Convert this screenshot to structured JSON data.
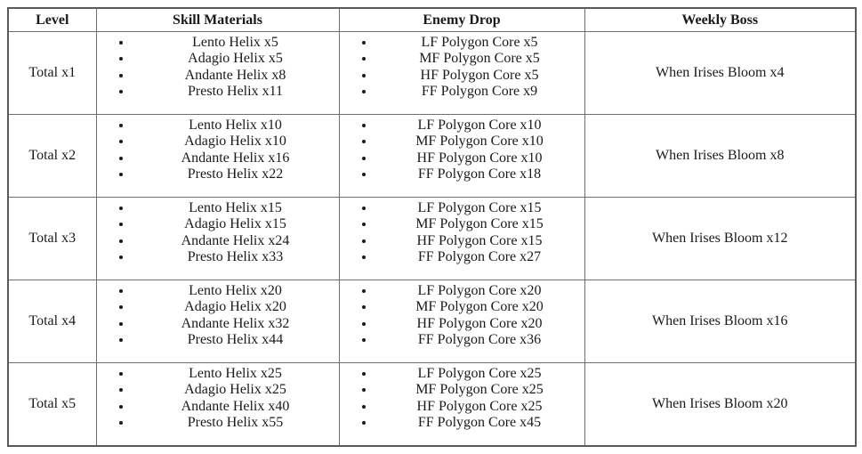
{
  "colors": {
    "background": "#ffffff",
    "border": "#6e6e6e",
    "text": "#1a1a1a"
  },
  "table": {
    "headers": [
      "Level",
      "Skill Materials",
      "Enemy Drop",
      "Weekly Boss"
    ],
    "rows": [
      {
        "level": "Total x1",
        "skill_materials": [
          "Lento Helix x5",
          "Adagio Helix x5",
          "Andante Helix x8",
          "Presto Helix x11"
        ],
        "enemy_drop": [
          "LF Polygon Core x5",
          "MF Polygon Core x5",
          "HF Polygon Core x5",
          "FF Polygon Core x9"
        ],
        "weekly_boss": "When Irises Bloom x4"
      },
      {
        "level": "Total x2",
        "skill_materials": [
          "Lento Helix x10",
          "Adagio Helix x10",
          "Andante Helix x16",
          "Presto Helix x22"
        ],
        "enemy_drop": [
          "LF Polygon Core x10",
          "MF Polygon Core x10",
          "HF Polygon Core x10",
          "FF Polygon Core x18"
        ],
        "weekly_boss": "When Irises Bloom x8"
      },
      {
        "level": "Total x3",
        "skill_materials": [
          "Lento Helix x15",
          "Adagio Helix x15",
          "Andante Helix x24",
          "Presto Helix x33"
        ],
        "enemy_drop": [
          "LF Polygon Core x15",
          "MF Polygon Core x15",
          "HF Polygon Core x15",
          "FF Polygon Core x27"
        ],
        "weekly_boss": "When Irises Bloom x12"
      },
      {
        "level": "Total x4",
        "skill_materials": [
          "Lento Helix x20",
          "Adagio Helix x20",
          "Andante Helix x32",
          "Presto Helix x44"
        ],
        "enemy_drop": [
          "LF Polygon Core x20",
          "MF Polygon Core x20",
          "HF Polygon Core x20",
          "FF Polygon Core x36"
        ],
        "weekly_boss": "When Irises Bloom x16"
      },
      {
        "level": "Total x5",
        "skill_materials": [
          "Lento Helix x25",
          "Adagio Helix x25",
          "Andante Helix x40",
          "Presto Helix x55"
        ],
        "enemy_drop": [
          "LF Polygon Core x25",
          "MF Polygon Core x25",
          "HF Polygon Core x25",
          "FF Polygon Core x45"
        ],
        "weekly_boss": "When Irises Bloom x20"
      }
    ]
  }
}
